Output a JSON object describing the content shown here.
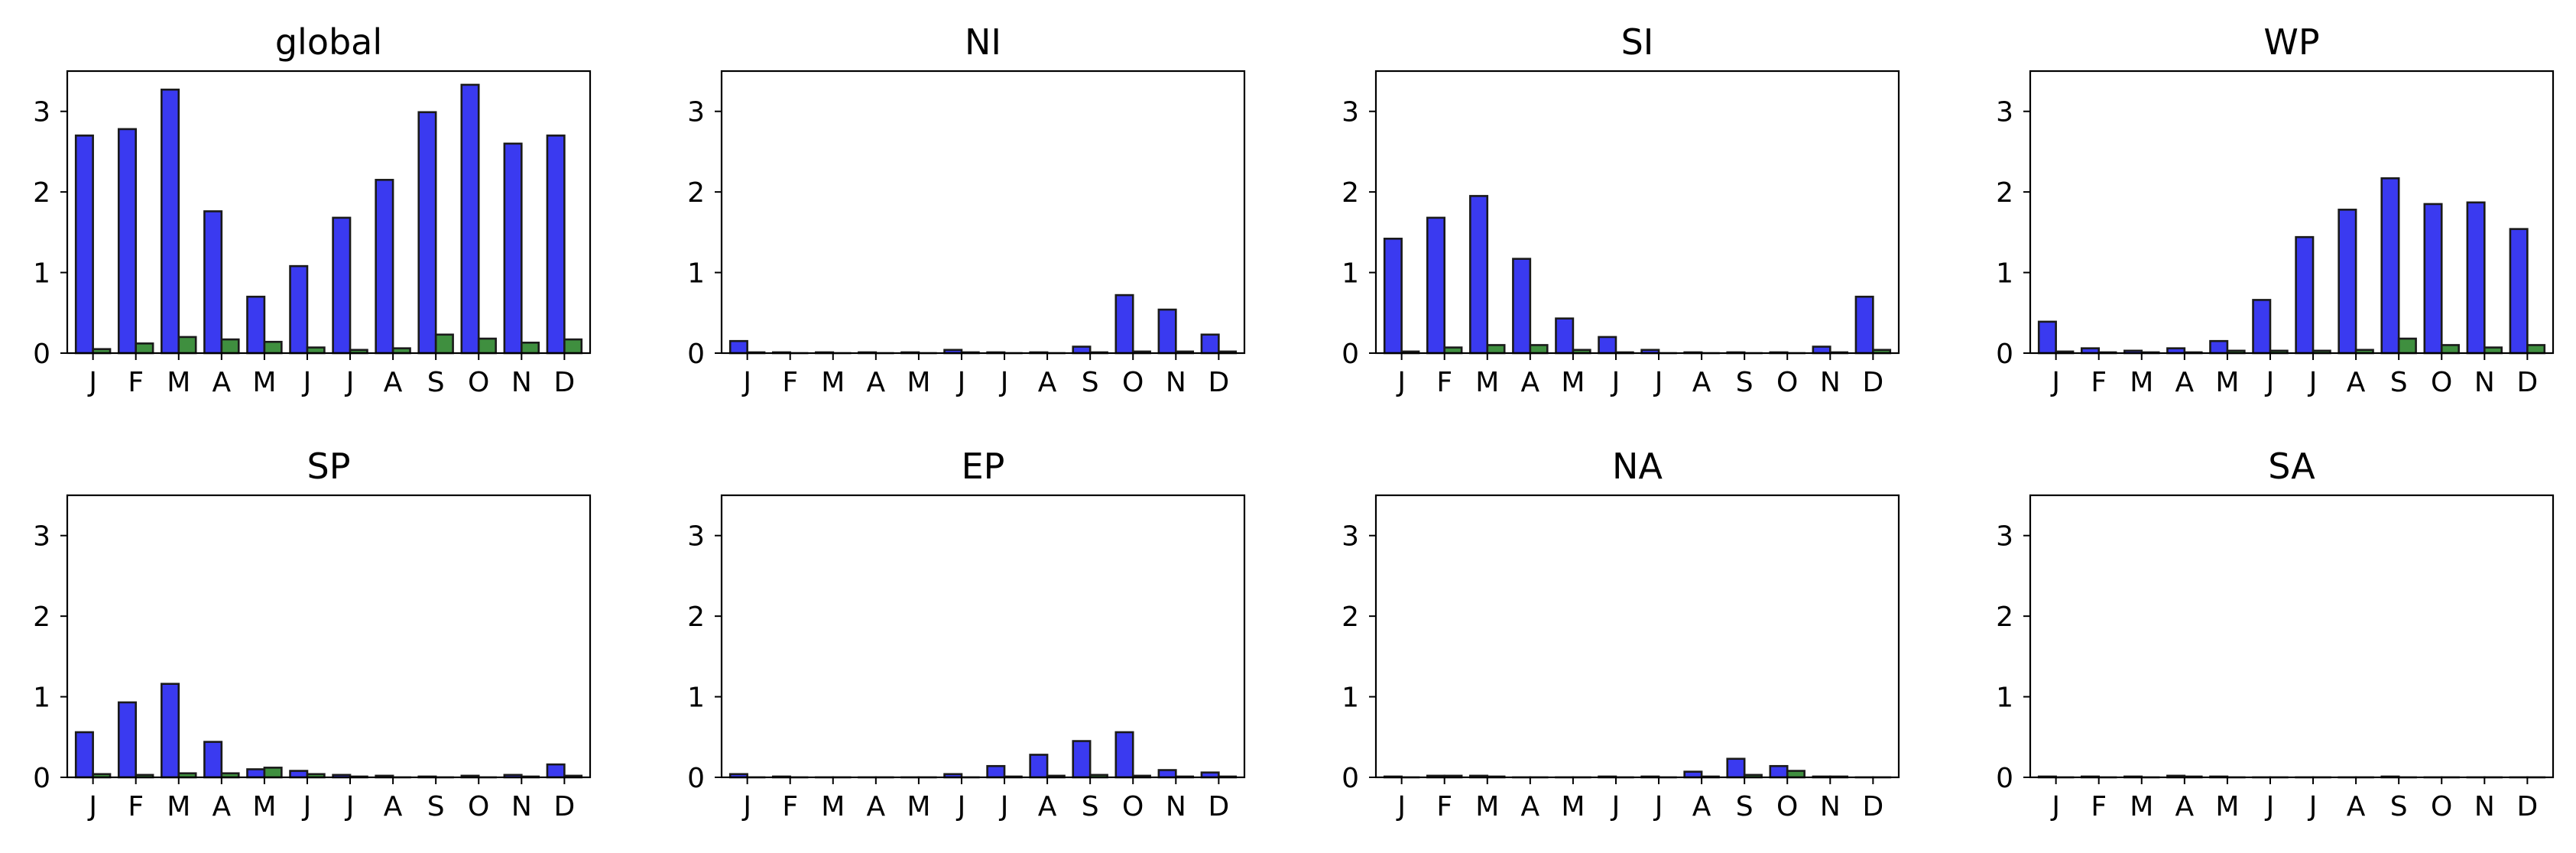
{
  "colors": {
    "series1": "#3a3af0",
    "series2": "#3f8f3f",
    "edge": "#1a1a1a"
  },
  "chart_data": [
    {
      "type": "bar",
      "title": "global",
      "categories": [
        "J",
        "F",
        "M",
        "A",
        "M",
        "J",
        "J",
        "A",
        "S",
        "O",
        "N",
        "D"
      ],
      "ylim": [
        0,
        3.5
      ],
      "yticks": [
        0,
        1,
        2,
        3
      ],
      "series": [
        {
          "values": [
            2.7,
            2.78,
            3.27,
            1.76,
            0.7,
            1.08,
            1.68,
            2.15,
            2.99,
            3.33,
            2.6,
            2.7
          ]
        },
        {
          "values": [
            0.05,
            0.12,
            0.2,
            0.17,
            0.14,
            0.07,
            0.04,
            0.06,
            0.23,
            0.18,
            0.13,
            0.17
          ]
        }
      ]
    },
    {
      "type": "bar",
      "title": "NI",
      "categories": [
        "J",
        "F",
        "M",
        "A",
        "M",
        "J",
        "J",
        "A",
        "S",
        "O",
        "N",
        "D"
      ],
      "ylim": [
        0,
        3.5
      ],
      "yticks": [
        0,
        1,
        2,
        3
      ],
      "series": [
        {
          "values": [
            0.15,
            0.01,
            0.01,
            0.01,
            0.01,
            0.04,
            0.01,
            0.01,
            0.08,
            0.72,
            0.54,
            0.23
          ]
        },
        {
          "values": [
            0.01,
            0.0,
            0.0,
            0.0,
            0.0,
            0.01,
            0.0,
            0.0,
            0.01,
            0.02,
            0.02,
            0.02
          ]
        }
      ]
    },
    {
      "type": "bar",
      "title": "SI",
      "categories": [
        "J",
        "F",
        "M",
        "A",
        "M",
        "J",
        "J",
        "A",
        "S",
        "O",
        "N",
        "D"
      ],
      "ylim": [
        0,
        3.5
      ],
      "yticks": [
        0,
        1,
        2,
        3
      ],
      "series": [
        {
          "values": [
            1.42,
            1.68,
            1.95,
            1.17,
            0.43,
            0.2,
            0.04,
            0.01,
            0.01,
            0.01,
            0.08,
            0.7
          ]
        },
        {
          "values": [
            0.02,
            0.07,
            0.1,
            0.1,
            0.04,
            0.01,
            0.0,
            0.0,
            0.0,
            0.0,
            0.01,
            0.04
          ]
        }
      ]
    },
    {
      "type": "bar",
      "title": "WP",
      "categories": [
        "J",
        "F",
        "M",
        "A",
        "M",
        "J",
        "J",
        "A",
        "S",
        "O",
        "N",
        "D"
      ],
      "ylim": [
        0,
        3.5
      ],
      "yticks": [
        0,
        1,
        2,
        3
      ],
      "series": [
        {
          "values": [
            0.39,
            0.06,
            0.03,
            0.06,
            0.15,
            0.66,
            1.44,
            1.78,
            2.17,
            1.85,
            1.87,
            1.54
          ]
        },
        {
          "values": [
            0.02,
            0.01,
            0.01,
            0.01,
            0.03,
            0.03,
            0.03,
            0.04,
            0.18,
            0.1,
            0.07,
            0.1
          ]
        }
      ]
    },
    {
      "type": "bar",
      "title": "SP",
      "categories": [
        "J",
        "F",
        "M",
        "A",
        "M",
        "J",
        "J",
        "A",
        "S",
        "O",
        "N",
        "D"
      ],
      "ylim": [
        0,
        3.5
      ],
      "yticks": [
        0,
        1,
        2,
        3
      ],
      "series": [
        {
          "values": [
            0.56,
            0.93,
            1.16,
            0.44,
            0.1,
            0.08,
            0.03,
            0.02,
            0.01,
            0.02,
            0.03,
            0.16
          ]
        },
        {
          "values": [
            0.04,
            0.03,
            0.05,
            0.05,
            0.12,
            0.04,
            0.01,
            0.0,
            0.0,
            0.0,
            0.01,
            0.02
          ]
        }
      ]
    },
    {
      "type": "bar",
      "title": "EP",
      "categories": [
        "J",
        "F",
        "M",
        "A",
        "M",
        "J",
        "J",
        "A",
        "S",
        "O",
        "N",
        "D"
      ],
      "ylim": [
        0,
        3.5
      ],
      "yticks": [
        0,
        1,
        2,
        3
      ],
      "series": [
        {
          "values": [
            0.04,
            0.01,
            0.0,
            0.0,
            0.0,
            0.04,
            0.14,
            0.28,
            0.45,
            0.56,
            0.09,
            0.06
          ]
        },
        {
          "values": [
            0.0,
            0.0,
            0.0,
            0.0,
            0.0,
            0.0,
            0.01,
            0.02,
            0.03,
            0.02,
            0.01,
            0.01
          ]
        }
      ]
    },
    {
      "type": "bar",
      "title": "NA",
      "categories": [
        "J",
        "F",
        "M",
        "A",
        "M",
        "J",
        "J",
        "A",
        "S",
        "O",
        "N",
        "D"
      ],
      "ylim": [
        0,
        3.5
      ],
      "yticks": [
        0,
        1,
        2,
        3
      ],
      "series": [
        {
          "values": [
            0.01,
            0.02,
            0.02,
            0.0,
            0.0,
            0.01,
            0.01,
            0.07,
            0.23,
            0.14,
            0.01,
            0.0
          ]
        },
        {
          "values": [
            0.0,
            0.02,
            0.01,
            0.0,
            0.0,
            0.0,
            0.0,
            0.01,
            0.03,
            0.08,
            0.01,
            0.0
          ]
        }
      ]
    },
    {
      "type": "bar",
      "title": "SA",
      "categories": [
        "J",
        "F",
        "M",
        "A",
        "M",
        "J",
        "J",
        "A",
        "S",
        "O",
        "N",
        "D"
      ],
      "ylim": [
        0,
        3.5
      ],
      "yticks": [
        0,
        1,
        2,
        3
      ],
      "series": [
        {
          "values": [
            0.01,
            0.01,
            0.01,
            0.02,
            0.01,
            0.0,
            0.0,
            0.0,
            0.01,
            0.0,
            0.0,
            0.0
          ]
        },
        {
          "values": [
            0.0,
            0.0,
            0.0,
            0.01,
            0.0,
            0.0,
            0.0,
            0.0,
            0.0,
            0.0,
            0.0,
            0.0
          ]
        }
      ]
    }
  ]
}
